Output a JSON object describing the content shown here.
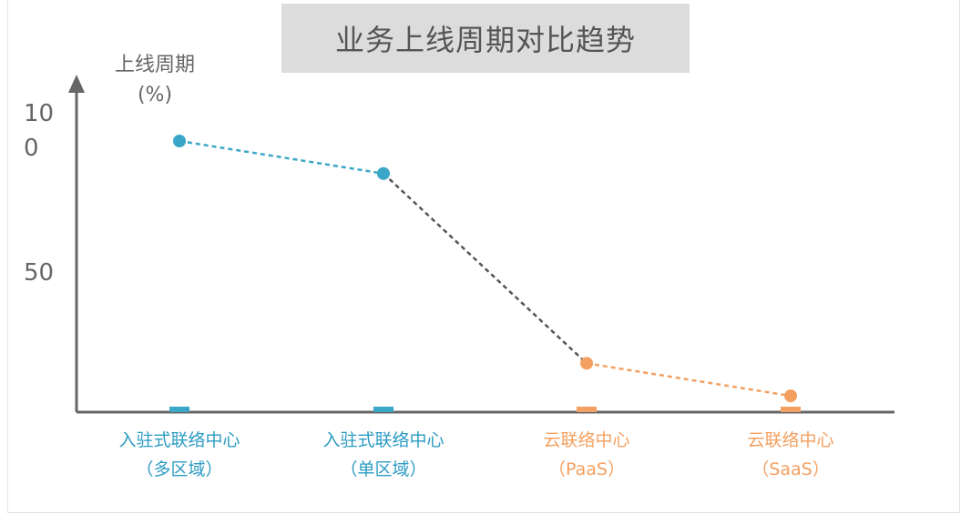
{
  "chart_data": {
    "type": "line",
    "title": "业务上线周期对比趋势",
    "ylabel_lines": [
      "上线周期",
      "(%)"
    ],
    "ytick_labels": [
      {
        "value": 100,
        "lines": [
          "10",
          "0"
        ]
      },
      {
        "value": 50,
        "lines": [
          "50"
        ]
      }
    ],
    "ylim": [
      0,
      110
    ],
    "categories": [
      {
        "lines": [
          "入驻式联络中心",
          "（多区域）"
        ],
        "color": "#2d9cc3"
      },
      {
        "lines": [
          "入驻式联络中心",
          "（单区域）"
        ],
        "color": "#2d9cc3"
      },
      {
        "lines": [
          "云联络中心",
          "（PaaS）"
        ],
        "color": "#f4a060"
      },
      {
        "lines": [
          "云联络中心",
          "（SaaS）"
        ],
        "color": "#f4a060"
      }
    ],
    "values": [
      100,
      88,
      18,
      6
    ],
    "point_colors": [
      "#3aa7c8",
      "#3aa7c8",
      "#f4a060",
      "#f4a060"
    ],
    "segment_colors": [
      "#3aa7c8",
      "#555555",
      "#f4a060"
    ],
    "marker_colors": [
      "#3aa7c8",
      "#3aa7c8",
      "#f4a060",
      "#f4a060"
    ],
    "axis_color": "#666666",
    "grid": false,
    "legend": "none"
  }
}
